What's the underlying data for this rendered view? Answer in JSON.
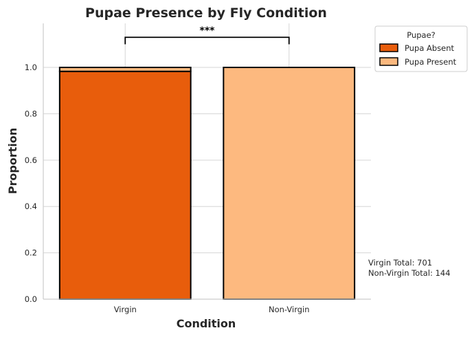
{
  "chart_data": {
    "type": "bar",
    "stacked": true,
    "title": "Pupae Presence by Fly Condition",
    "xlabel": "Condition",
    "ylabel": "Proportion",
    "categories": [
      "Virgin",
      "Non-Virgin"
    ],
    "series": [
      {
        "name": "Pupa Absent",
        "color": "#e85d0c",
        "values": [
          0.983,
          0.0
        ]
      },
      {
        "name": "Pupa Present",
        "color": "#fdb97f",
        "values": [
          0.017,
          1.0
        ]
      }
    ],
    "ylim": [
      0,
      1.19
    ],
    "yticks": [
      "0.0",
      "0.2",
      "0.4",
      "0.6",
      "0.8",
      "1.0"
    ],
    "grid": true,
    "legend": {
      "title": "Pupae?",
      "placement": "outside-top-right"
    },
    "significance": {
      "label": "***",
      "between": [
        "Virgin",
        "Non-Virgin"
      ]
    },
    "annotations": [
      "Virgin Total: 701",
      "Non-Virgin Total: 144"
    ]
  }
}
